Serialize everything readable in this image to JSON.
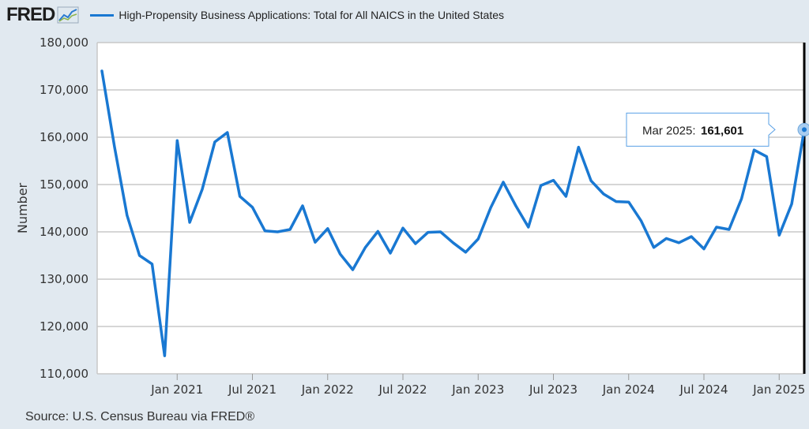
{
  "header": {
    "logo": "FRED",
    "logo_icon": "line-chart-icon",
    "series_title": "High-Propensity Business Applications: Total for All NAICS in the United States",
    "series_color": "#1978d2"
  },
  "source": "Source: U.S. Census Bureau via FRED®",
  "tooltip": {
    "label": "Mar 2025:",
    "value": "161,601"
  },
  "chart_data": {
    "type": "line",
    "title": "High-Propensity Business Applications: Total for All NAICS in the United States",
    "ylabel": "Number",
    "xlabel": "",
    "ylim": [
      110000,
      180000
    ],
    "yticks": [
      110000,
      120000,
      130000,
      140000,
      150000,
      160000,
      170000,
      180000
    ],
    "ytick_labels": [
      "110,000",
      "120,000",
      "130,000",
      "140,000",
      "150,000",
      "160,000",
      "170,000",
      "180,000"
    ],
    "xticks": [
      "2021-01",
      "2021-07",
      "2022-01",
      "2022-07",
      "2023-01",
      "2023-07",
      "2024-01",
      "2024-07",
      "2025-01"
    ],
    "xtick_labels": [
      "Jan 2021",
      "Jul 2021",
      "Jan 2022",
      "Jul 2022",
      "Jan 2023",
      "Jul 2023",
      "Jan 2024",
      "Jul 2024",
      "Jan 2025"
    ],
    "x_range": [
      "2020-07",
      "2025-03"
    ],
    "grid": true,
    "line_color": "#1978d2",
    "series": [
      {
        "name": "High-Propensity Business Applications: Total for All NAICS in the United States",
        "x": [
          "2020-07",
          "2020-08",
          "2020-09",
          "2020-10",
          "2020-11",
          "2020-12",
          "2021-01",
          "2021-02",
          "2021-03",
          "2021-04",
          "2021-05",
          "2021-06",
          "2021-07",
          "2021-08",
          "2021-09",
          "2021-10",
          "2021-11",
          "2021-12",
          "2022-01",
          "2022-02",
          "2022-03",
          "2022-04",
          "2022-05",
          "2022-06",
          "2022-07",
          "2022-08",
          "2022-09",
          "2022-10",
          "2022-11",
          "2022-12",
          "2023-01",
          "2023-02",
          "2023-03",
          "2023-04",
          "2023-05",
          "2023-06",
          "2023-07",
          "2023-08",
          "2023-09",
          "2023-10",
          "2023-11",
          "2023-12",
          "2024-01",
          "2024-02",
          "2024-03",
          "2024-04",
          "2024-05",
          "2024-06",
          "2024-07",
          "2024-08",
          "2024-09",
          "2024-10",
          "2024-11",
          "2024-12",
          "2025-01",
          "2025-02",
          "2025-03"
        ],
        "values": [
          174000,
          158000,
          143500,
          135000,
          133200,
          113800,
          159300,
          142000,
          149000,
          159000,
          161000,
          147500,
          145200,
          140200,
          140000,
          140500,
          145500,
          137800,
          140700,
          135300,
          132000,
          136700,
          140100,
          135500,
          140800,
          137500,
          139900,
          140000,
          137700,
          135700,
          138500,
          145100,
          150500,
          145500,
          141000,
          149800,
          150900,
          147500,
          157900,
          150800,
          148000,
          146400,
          146300,
          142300,
          136700,
          138600,
          137700,
          139000,
          136400,
          141000,
          140500,
          147000,
          157300,
          155900,
          139300,
          145900,
          161601
        ]
      }
    ]
  }
}
